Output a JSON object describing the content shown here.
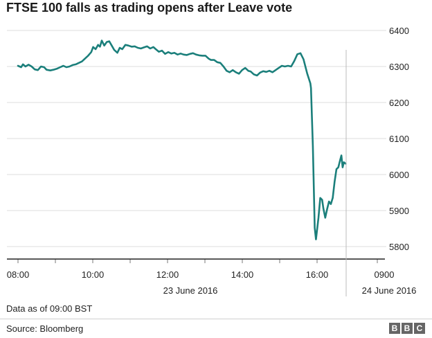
{
  "chart_data": {
    "type": "line",
    "title": "FTSE 100 falls as trading opens after Leave vote",
    "xlabel": "",
    "ylabel": "",
    "y_ticks": [
      5800,
      5900,
      6000,
      6100,
      6200,
      6300,
      6400
    ],
    "ylim": [
      5770,
      6420
    ],
    "x_ticks": [
      {
        "label": "08:00",
        "t": 0
      },
      {
        "label": "10:00",
        "t": 120
      },
      {
        "label": "12:00",
        "t": 240
      },
      {
        "label": "14:00",
        "t": 360
      },
      {
        "label": "16:00",
        "t": 480
      },
      {
        "label": "0900",
        "t": 590
      }
    ],
    "date_labels": [
      "23 June 2016",
      "24 June 2016"
    ],
    "grid": true,
    "series": [
      {
        "color": "#1b7f7b",
        "points": [
          [
            0,
            6302
          ],
          [
            5,
            6298
          ],
          [
            8,
            6306
          ],
          [
            12,
            6300
          ],
          [
            17,
            6305
          ],
          [
            22,
            6300
          ],
          [
            27,
            6292
          ],
          [
            32,
            6290
          ],
          [
            37,
            6300
          ],
          [
            42,
            6298
          ],
          [
            46,
            6291
          ],
          [
            52,
            6289
          ],
          [
            57,
            6291
          ],
          [
            63,
            6294
          ],
          [
            68,
            6298
          ],
          [
            73,
            6302
          ],
          [
            78,
            6298
          ],
          [
            83,
            6300
          ],
          [
            88,
            6304
          ],
          [
            93,
            6306
          ],
          [
            98,
            6310
          ],
          [
            103,
            6314
          ],
          [
            108,
            6322
          ],
          [
            113,
            6330
          ],
          [
            118,
            6340
          ],
          [
            121,
            6354
          ],
          [
            125,
            6348
          ],
          [
            129,
            6360
          ],
          [
            132,
            6355
          ],
          [
            135,
            6372
          ],
          [
            139,
            6358
          ],
          [
            143,
            6368
          ],
          [
            147,
            6370
          ],
          [
            151,
            6358
          ],
          [
            155,
            6346
          ],
          [
            160,
            6338
          ],
          [
            164,
            6352
          ],
          [
            168,
            6348
          ],
          [
            173,
            6360
          ],
          [
            178,
            6358
          ],
          [
            183,
            6355
          ],
          [
            188,
            6356
          ],
          [
            193,
            6352
          ],
          [
            198,
            6350
          ],
          [
            203,
            6353
          ],
          [
            208,
            6356
          ],
          [
            213,
            6350
          ],
          [
            218,
            6354
          ],
          [
            222,
            6348
          ],
          [
            227,
            6341
          ],
          [
            232,
            6344
          ],
          [
            237,
            6335
          ],
          [
            242,
            6340
          ],
          [
            247,
            6336
          ],
          [
            252,
            6338
          ],
          [
            257,
            6333
          ],
          [
            262,
            6336
          ],
          [
            267,
            6333
          ],
          [
            272,
            6332
          ],
          [
            277,
            6335
          ],
          [
            282,
            6337
          ],
          [
            287,
            6333
          ],
          [
            292,
            6331
          ],
          [
            297,
            6330
          ],
          [
            302,
            6330
          ],
          [
            307,
            6322
          ],
          [
            311,
            6318
          ],
          [
            316,
            6318
          ],
          [
            321,
            6312
          ],
          [
            326,
            6310
          ],
          [
            331,
            6300
          ],
          [
            336,
            6288
          ],
          [
            341,
            6284
          ],
          [
            346,
            6290
          ],
          [
            351,
            6284
          ],
          [
            356,
            6280
          ],
          [
            361,
            6290
          ],
          [
            366,
            6296
          ],
          [
            371,
            6288
          ],
          [
            375,
            6286
          ],
          [
            380,
            6278
          ],
          [
            385,
            6275
          ],
          [
            390,
            6283
          ],
          [
            395,
            6287
          ],
          [
            400,
            6285
          ],
          [
            405,
            6288
          ],
          [
            410,
            6284
          ],
          [
            415,
            6290
          ],
          [
            420,
            6296
          ],
          [
            425,
            6302
          ],
          [
            430,
            6300
          ],
          [
            435,
            6302
          ],
          [
            440,
            6300
          ],
          [
            445,
            6315
          ],
          [
            450,
            6334
          ],
          [
            455,
            6337
          ],
          [
            460,
            6320
          ],
          [
            466,
            6280
          ],
          [
            471,
            6253
          ],
          [
            472,
            6240
          ],
          [
            475,
            6080
          ],
          [
            478,
            5852
          ],
          [
            480,
            5820
          ],
          [
            484,
            5880
          ],
          [
            487,
            5935
          ],
          [
            490,
            5930
          ],
          [
            492,
            5906
          ],
          [
            495,
            5880
          ],
          [
            498,
            5904
          ],
          [
            501,
            5925
          ],
          [
            504,
            5918
          ],
          [
            507,
            5935
          ],
          [
            510,
            5980
          ],
          [
            513,
            6015
          ],
          [
            516,
            6020
          ],
          [
            519,
            6040
          ],
          [
            521,
            6053
          ],
          [
            523,
            6020
          ],
          [
            525,
            6034
          ],
          [
            528,
            6030
          ]
        ]
      }
    ]
  },
  "footer": {
    "note": "Data as of 09:00 BST",
    "source": "Source: Bloomberg",
    "logo_letters": [
      "B",
      "B",
      "C"
    ]
  }
}
